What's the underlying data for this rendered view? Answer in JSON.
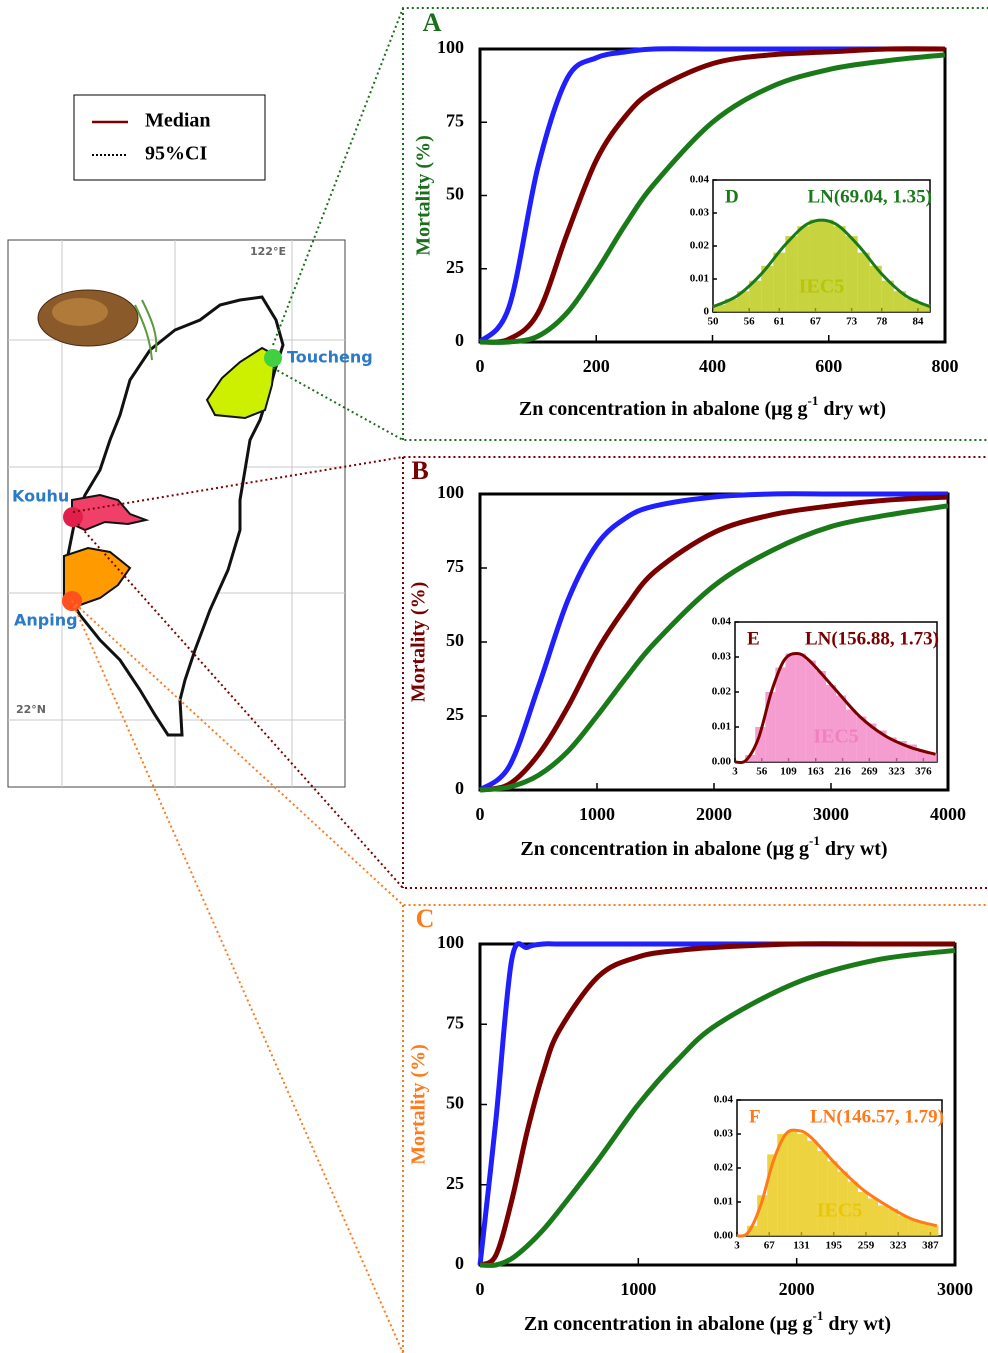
{
  "chart_data": [
    {
      "type": "line",
      "title": "A",
      "color": "#1b6e1b",
      "ylabel": "Mortality (%)",
      "xlabel": {
        "text": "Zn concentration in abalone (μg g",
        "sup": "-1",
        "tail": "dry wt)"
      },
      "xlim": [
        0,
        800
      ],
      "xticks": [
        0,
        200,
        400,
        600,
        800
      ],
      "ylim": [
        0,
        100
      ],
      "yticks": [
        0,
        25,
        50,
        75,
        100
      ],
      "x": [
        0,
        50,
        100,
        150,
        200,
        250,
        300,
        400,
        500,
        600,
        700,
        800
      ],
      "series": [
        {
          "name": "95%CI",
          "color": "#1f1fff",
          "values": [
            0,
            12,
            60,
            90,
            97,
            99,
            100,
            100,
            100,
            100,
            100,
            100
          ]
        },
        {
          "name": "Median",
          "color": "#7a0000",
          "values": [
            0,
            1,
            10,
            37,
            62,
            77,
            86,
            95,
            98,
            99,
            100,
            100
          ]
        },
        {
          "color": "#1a7a1a",
          "values": [
            0,
            0,
            2,
            10,
            24,
            40,
            54,
            75,
            87,
            93,
            96,
            98
          ]
        }
      ]
    },
    {
      "type": "line",
      "title": "B",
      "color": "#7a0000",
      "ylabel": "Mortality (%)",
      "xlabel": {
        "text": "Zn concentration in abalone (μg g",
        "sup": "-1",
        "tail": "dry wt)"
      },
      "xlim": [
        0,
        4000
      ],
      "xticks": [
        0,
        1000,
        2000,
        3000,
        4000
      ],
      "ylim": [
        0,
        100
      ],
      "yticks": [
        0,
        25,
        50,
        75,
        100
      ],
      "x": [
        0,
        250,
        500,
        750,
        1000,
        1250,
        1500,
        2000,
        2500,
        3000,
        3500,
        4000
      ],
      "series": [
        {
          "color": "#1f1fff",
          "values": [
            0,
            8,
            35,
            64,
            83,
            92,
            96,
            99,
            100,
            100,
            100,
            100
          ]
        },
        {
          "color": "#7a0000",
          "values": [
            0,
            2,
            12,
            28,
            47,
            62,
            74,
            87,
            93,
            96,
            98,
            99
          ]
        },
        {
          "color": "#1a7a1a",
          "values": [
            0,
            1,
            5,
            13,
            25,
            38,
            50,
            69,
            81,
            89,
            93,
            96
          ]
        }
      ]
    },
    {
      "type": "line",
      "title": "C",
      "color": "#ff7a1a",
      "ylabel": "Mortality (%)",
      "xlabel": {
        "text": "Zn concentration in abalone (μg g",
        "sup": "-1",
        "tail": "dry wt)"
      },
      "xlim": [
        0,
        3000
      ],
      "xticks": [
        0,
        1000,
        2000,
        3000
      ],
      "ylim": [
        0,
        100
      ],
      "yticks": [
        0,
        25,
        50,
        75,
        100
      ],
      "x": [
        0,
        100,
        200,
        300,
        400,
        500,
        750,
        1000,
        1250,
        1500,
        2000,
        2500,
        3000
      ],
      "series": [
        {
          "color": "#1f1fff",
          "values": [
            0,
            45,
            95,
            99,
            100,
            100,
            100,
            100,
            100,
            100,
            100,
            100,
            100
          ]
        },
        {
          "color": "#7a0000",
          "values": [
            0,
            3,
            20,
            42,
            60,
            73,
            90,
            96,
            98,
            99,
            100,
            100,
            100
          ]
        },
        {
          "color": "#1a7a1a",
          "values": [
            0,
            0,
            2,
            6,
            11,
            17,
            33,
            50,
            64,
            75,
            88,
            95,
            98
          ]
        }
      ]
    },
    {
      "type": "histogram",
      "title": "D",
      "annotation": "IEC5",
      "color": "#b5c400",
      "bins": [
        50,
        52,
        54,
        56,
        58,
        60,
        62,
        64,
        66,
        68,
        70,
        72,
        74,
        76,
        78,
        80,
        82,
        84,
        86
      ],
      "values": [
        0.0022,
        0.004,
        0.0063,
        0.0095,
        0.014,
        0.018,
        0.023,
        0.026,
        0.028,
        0.028,
        0.026,
        0.023,
        0.018,
        0.014,
        0.0095,
        0.0063,
        0.004,
        0.0024
      ],
      "xlim": [
        50,
        86
      ],
      "xticks": [
        50,
        56,
        61,
        67,
        73,
        78,
        84
      ],
      "ylim": [
        0,
        0.04
      ],
      "yticks": [
        0,
        0.01,
        0.02,
        0.03,
        0.04
      ],
      "series": [
        {
          "name": "LN(69.04, 1.35)",
          "color": "#1a7a1a",
          "x": [
            50,
            54,
            58,
            62,
            66,
            70,
            74,
            78,
            82,
            86
          ],
          "values": [
            0.0016,
            0.0049,
            0.0115,
            0.0204,
            0.027,
            0.027,
            0.0204,
            0.0115,
            0.0049,
            0.0016
          ]
        }
      ]
    },
    {
      "type": "histogram",
      "title": "E",
      "annotation": "IEC5",
      "color": "#f27cc0",
      "bins": [
        3,
        23,
        43,
        63,
        83,
        103,
        123,
        143,
        163,
        183,
        203,
        223,
        243,
        263,
        283,
        303,
        323,
        343,
        363,
        383,
        403
      ],
      "values": [
        0,
        0.002,
        0.01,
        0.02,
        0.027,
        0.031,
        0.031,
        0.029,
        0.026,
        0.022,
        0.019,
        0.015,
        0.013,
        0.011,
        0.009,
        0.007,
        0.006,
        0.005,
        0.003,
        0.0025
      ],
      "xlim": [
        3,
        403
      ],
      "xticks": [
        3,
        56,
        109,
        163,
        216,
        269,
        323,
        376
      ],
      "ylim": [
        0,
        0.04
      ],
      "yticks": [
        {
          "value": 0,
          "label": "0.00"
        },
        0.01,
        0.02,
        0.03,
        0.04
      ],
      "series": [
        {
          "name": "LN(156.88, 1.73)",
          "color": "#7a0000",
          "x": [
            3,
            25,
            50,
            75,
            100,
            125,
            150,
            200,
            250,
            300,
            350,
            400
          ],
          "values": [
            0,
            0.0005,
            0.007,
            0.02,
            0.029,
            0.031,
            0.029,
            0.021,
            0.013,
            0.0075,
            0.0042,
            0.0022
          ]
        }
      ]
    },
    {
      "type": "histogram",
      "title": "F",
      "annotation": "IEC5",
      "color": "#e8c400",
      "bins": [
        3,
        23,
        43,
        63,
        83,
        103,
        123,
        143,
        163,
        183,
        203,
        223,
        243,
        263,
        283,
        303,
        323,
        343,
        363,
        383,
        403
      ],
      "values": [
        0,
        0.003,
        0.012,
        0.024,
        0.03,
        0.031,
        0.03,
        0.028,
        0.025,
        0.022,
        0.019,
        0.016,
        0.013,
        0.011,
        0.009,
        0.008,
        0.006,
        0.005,
        0.004,
        0.003
      ],
      "xlim": [
        3,
        410
      ],
      "xticks": [
        3,
        67,
        131,
        195,
        259,
        323,
        387
      ],
      "ylim": [
        0,
        0.04
      ],
      "yticks": [
        {
          "value": 0,
          "label": "0.00"
        },
        0.01,
        0.02,
        0.03,
        0.04
      ],
      "series": [
        {
          "name": "LN(146.57, 1.79)",
          "color": "#ff7a1a",
          "x": [
            3,
            25,
            50,
            75,
            100,
            125,
            150,
            200,
            250,
            300,
            350,
            400
          ],
          "values": [
            0,
            0.001,
            0.009,
            0.022,
            0.03,
            0.031,
            0.029,
            0.021,
            0.014,
            0.009,
            0.005,
            0.003
          ]
        }
      ]
    }
  ],
  "map": {
    "labels": [
      "Toucheng",
      "Kouhu",
      "Anping"
    ],
    "lon_label": "122°E",
    "lat_label": "22°N"
  }
}
